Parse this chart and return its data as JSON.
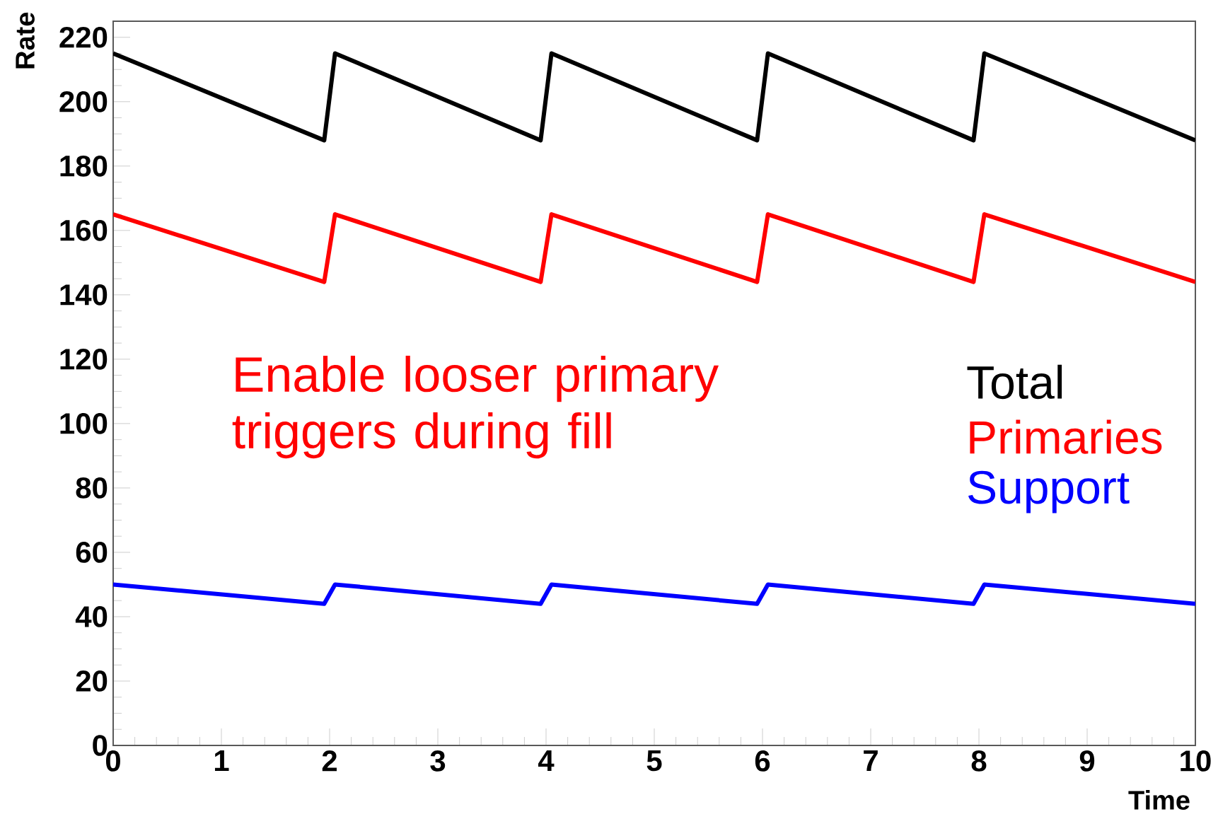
{
  "chart_data": {
    "type": "line",
    "xlabel": "Time",
    "ylabel": "Rate",
    "x": [
      0,
      1.95,
      2.05,
      3.95,
      4.05,
      5.95,
      6.05,
      7.95,
      8.05,
      10
    ],
    "series": [
      {
        "name": "Total",
        "color": "#000000",
        "values": [
          215,
          188,
          215,
          188,
          215,
          188,
          215,
          188,
          215,
          188
        ]
      },
      {
        "name": "Primaries",
        "color": "#ff0000",
        "values": [
          165,
          144,
          165,
          144,
          165,
          144,
          165,
          144,
          165,
          144
        ]
      },
      {
        "name": "Support",
        "color": "#0000ff",
        "values": [
          50,
          44,
          50,
          44,
          50,
          44,
          50,
          44,
          50,
          44
        ]
      }
    ],
    "annotations": [
      "Enable looser primary triggers during fill"
    ],
    "xlim": [
      0,
      10
    ],
    "ylim": [
      0,
      225
    ],
    "xticks": [
      0,
      1,
      2,
      3,
      4,
      5,
      6,
      7,
      8,
      9,
      10
    ],
    "yticks": [
      0,
      20,
      40,
      60,
      80,
      100,
      120,
      140,
      160,
      180,
      200,
      220
    ],
    "grid": false,
    "legend": "right",
    "marker": "none",
    "line_style": "solid"
  }
}
